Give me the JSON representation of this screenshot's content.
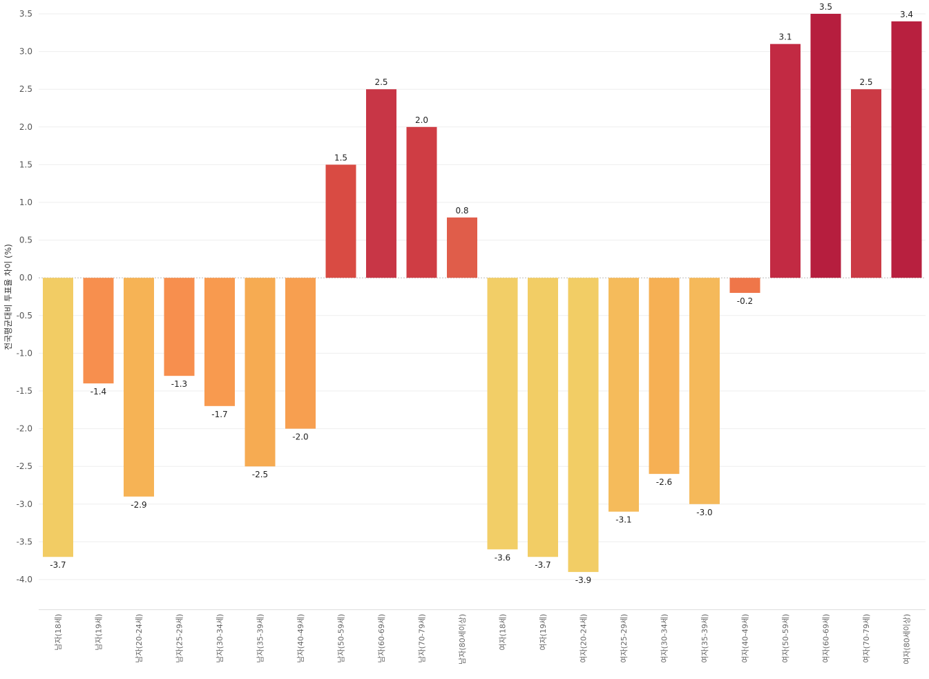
{
  "chart_data": {
    "type": "bar",
    "title": "",
    "xlabel": "",
    "ylabel": "전국평균대비 투표율 차이 (%)",
    "ylim": [
      -4.4,
      3.5
    ],
    "yticks": [
      3.5,
      3.0,
      2.5,
      2.0,
      1.5,
      1.0,
      0.5,
      0.0,
      -0.5,
      -1.0,
      -1.5,
      -2.0,
      -2.5,
      -3.0,
      -3.5,
      -4.0
    ],
    "ytick_labels": [
      "3.5",
      "3.0",
      "2.5",
      "2.0",
      "1.5",
      "1.0",
      "0.5",
      "0.0",
      "-0.5",
      "-1.0",
      "-1.5",
      "-2.0",
      "-2.5",
      "-3.0",
      "-3.5",
      "-4.0"
    ],
    "grid": true,
    "categories": [
      "남자(18세)",
      "남자(19세)",
      "남자(20-24세)",
      "남자(25-29세)",
      "남자(30-34세)",
      "남자(35-39세)",
      "남자(40-49세)",
      "남자(50-59세)",
      "남자(60-69세)",
      "남자(70-79세)",
      "남자(80세이상)",
      "여자(18세)",
      "여자(19세)",
      "여자(20-24세)",
      "여자(25-29세)",
      "여자(30-34세)",
      "여자(35-39세)",
      "여자(40-49세)",
      "여자(50-59세)",
      "여자(60-69세)",
      "여자(70-79세)",
      "여자(80세이상)"
    ],
    "values": [
      -3.7,
      -1.4,
      -2.9,
      -1.3,
      -1.7,
      -2.5,
      -2.0,
      1.5,
      2.5,
      2.0,
      0.8,
      -3.6,
      -3.7,
      -3.9,
      -3.1,
      -2.6,
      -3.0,
      -0.2,
      3.1,
      3.5,
      2.5,
      3.4
    ],
    "value_labels": [
      "-3.7",
      "-1.4",
      "-2.9",
      "-1.3",
      "-1.7",
      "-2.5",
      "-2.0",
      "1.5",
      "2.5",
      "2.0",
      "0.8",
      "-3.6",
      "-3.7",
      "-3.9",
      "-3.1",
      "-2.6",
      "-3.0",
      "-0.2",
      "3.1",
      "3.5",
      "2.5",
      "3.4"
    ],
    "colors": [
      "#f2cc64",
      "#f78f4e",
      "#f6b355",
      "#f78f4e",
      "#f89a4f",
      "#f6ab52",
      "#f79f50",
      "#d94b43",
      "#c83646",
      "#cf3d44",
      "#e05d4a",
      "#f2ce67",
      "#f2cd65",
      "#f2cd65",
      "#f5bb5b",
      "#f6b054",
      "#f5b95a",
      "#ef7649",
      "#c22a43",
      "#b61e3e",
      "#cb3a45",
      "#b8203f"
    ]
  }
}
